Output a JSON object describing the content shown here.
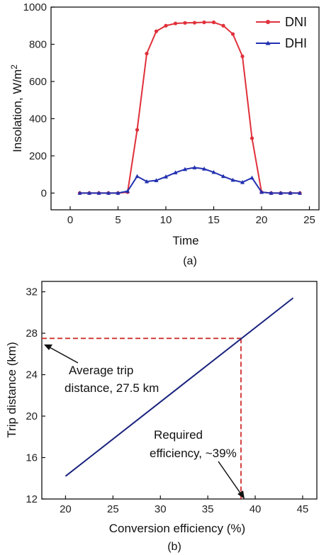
{
  "chart_data": [
    {
      "type": "line",
      "panel_label": "(a)",
      "xlabel": "Time",
      "ylabel": "Insolation, W/m",
      "ylabel_sup": "2",
      "xlim": [
        -2,
        26
      ],
      "ylim": [
        -90,
        1000
      ],
      "xticks": [
        0,
        5,
        10,
        15,
        20,
        25
      ],
      "yticks": [
        0,
        200,
        400,
        600,
        800,
        1000
      ],
      "legend_position": "top-right",
      "series": [
        {
          "name": "DNI",
          "color": "#e0303a",
          "marker": "circle",
          "points": [
            [
              1,
              0
            ],
            [
              2,
              0
            ],
            [
              3,
              0
            ],
            [
              4,
              0
            ],
            [
              5,
              0
            ],
            [
              6,
              5
            ],
            [
              7,
              340
            ],
            [
              8,
              750
            ],
            [
              9,
              870
            ],
            [
              10,
              900
            ],
            [
              11,
              912
            ],
            [
              12,
              915
            ],
            [
              13,
              916
            ],
            [
              14,
              918
            ],
            [
              15,
              918
            ],
            [
              16,
              900
            ],
            [
              17,
              855
            ],
            [
              18,
              735
            ],
            [
              19,
              295
            ],
            [
              20,
              5
            ],
            [
              21,
              0
            ],
            [
              22,
              0
            ],
            [
              23,
              0
            ],
            [
              24,
              0
            ]
          ]
        },
        {
          "name": "DHI",
          "color": "#2230b0",
          "marker": "triangle",
          "points": [
            [
              1,
              0
            ],
            [
              2,
              0
            ],
            [
              3,
              0
            ],
            [
              4,
              0
            ],
            [
              5,
              0
            ],
            [
              6,
              10
            ],
            [
              7,
              90
            ],
            [
              8,
              62
            ],
            [
              9,
              68
            ],
            [
              10,
              88
            ],
            [
              11,
              110
            ],
            [
              12,
              128
            ],
            [
              13,
              137
            ],
            [
              14,
              130
            ],
            [
              15,
              112
            ],
            [
              16,
              90
            ],
            [
              17,
              70
            ],
            [
              18,
              58
            ],
            [
              19,
              82
            ],
            [
              20,
              5
            ],
            [
              21,
              0
            ],
            [
              22,
              0
            ],
            [
              23,
              0
            ],
            [
              24,
              0
            ]
          ]
        }
      ]
    },
    {
      "type": "line",
      "panel_label": "(b)",
      "xlabel": "Conversion efficiency (%)",
      "ylabel": "Trip distance (km)",
      "xlim": [
        17.5,
        46.5
      ],
      "ylim": [
        12,
        33
      ],
      "xticks": [
        20,
        25,
        30,
        35,
        40,
        45
      ],
      "yticks": [
        12,
        16,
        20,
        24,
        28,
        32
      ],
      "series": [
        {
          "color": "#1a237e",
          "points": [
            [
              20,
              14.2
            ],
            [
              44,
              31.4
            ]
          ]
        }
      ],
      "reference_lines": {
        "color": "#cc2222",
        "y_value": 27.5,
        "x_value": 38.5
      },
      "annotations": [
        {
          "lines": [
            "Average trip",
            "distance, 27.5 km"
          ],
          "points_to": [
            17.6,
            27.5
          ]
        },
        {
          "lines": [
            "Required",
            "efficiency, ~39%"
          ],
          "points_to": [
            38.5,
            12.0
          ]
        }
      ]
    }
  ]
}
